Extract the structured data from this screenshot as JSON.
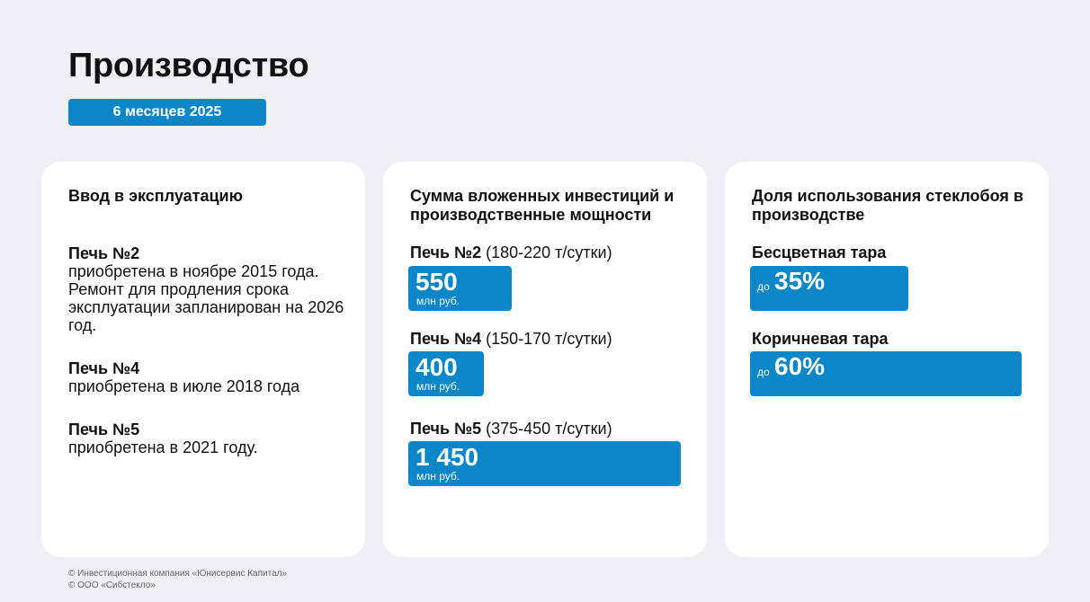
{
  "header": {
    "title": "Производство",
    "period": "6 месяцев 2025"
  },
  "commissioning": {
    "title": "Ввод в эксплуатацию",
    "items": [
      {
        "name": "Печь №2",
        "text": "приобретена в ноябре 2015 года. Ремонт для продления срока эксплуатации запланирован на 2026 год."
      },
      {
        "name": "Печь №4",
        "text": "приобретена в июле 2018 года"
      },
      {
        "name": "Печь №5",
        "text": "приобретена в 2021 году."
      }
    ]
  },
  "investments": {
    "title": "Сумма вложенных инвестиций и производственные мощности",
    "unit": "млн руб.",
    "max_value": 1450,
    "items": [
      {
        "name": "Печь №2",
        "capacity": "(180-220 т/сутки)",
        "value_label": "550",
        "value": 550
      },
      {
        "name": "Печь №4",
        "capacity": "(150-170 т/сутки)",
        "value_label": "400",
        "value": 400
      },
      {
        "name": "Печь №5",
        "capacity": "(375-450 т/сутки)",
        "value_label": "1 450",
        "value": 1450
      }
    ]
  },
  "cullet_share": {
    "title": "Доля использования стеклобоя в производстве",
    "prefix": "до",
    "items": [
      {
        "name": "Бесцветная тара",
        "value_label": "35%",
        "value": 35
      },
      {
        "name": "Коричневая тара",
        "value_label": "60%",
        "value": 60
      }
    ]
  },
  "accent_color": "#0a86c9",
  "footer": {
    "line1": "© Инвестиционная компания «Юнисервис Капитал»",
    "line2": "© ООО «Сибстекло»"
  }
}
